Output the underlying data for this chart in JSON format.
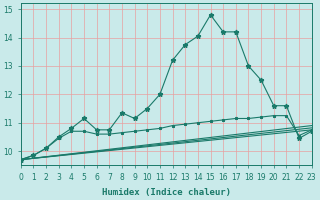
{
  "xlabel": "Humidex (Indice chaleur)",
  "xlim": [
    0,
    23
  ],
  "ylim": [
    9.5,
    15.2
  ],
  "xticks": [
    0,
    1,
    2,
    3,
    4,
    5,
    6,
    7,
    8,
    9,
    10,
    11,
    12,
    13,
    14,
    15,
    16,
    17,
    18,
    19,
    20,
    21,
    22,
    23
  ],
  "yticks": [
    10,
    11,
    12,
    13,
    14,
    15
  ],
  "bg_color": "#c9eaea",
  "grid_color": "#e8a0a0",
  "line_color": "#1a7a6a",
  "line1_x": [
    0,
    1,
    2,
    3,
    4,
    5,
    6,
    7,
    8,
    9,
    10,
    11,
    12,
    13,
    14,
    15,
    16,
    17,
    18,
    19,
    20,
    21,
    22,
    23
  ],
  "line1_y": [
    9.7,
    9.85,
    10.1,
    10.5,
    10.8,
    11.15,
    10.75,
    10.75,
    11.35,
    11.15,
    11.5,
    12.0,
    13.2,
    13.75,
    14.05,
    14.8,
    14.2,
    14.2,
    13.0,
    12.5,
    11.6,
    11.6,
    10.45,
    10.7
  ],
  "line2_x": [
    0,
    1,
    2,
    3,
    4,
    5,
    6,
    7,
    8,
    9,
    10,
    11,
    12,
    13,
    14,
    15,
    16,
    17,
    18,
    19,
    20,
    21,
    22,
    23
  ],
  "line2_y": [
    9.7,
    9.85,
    10.1,
    10.45,
    10.7,
    10.7,
    10.6,
    10.6,
    10.65,
    10.7,
    10.75,
    10.8,
    10.9,
    10.95,
    11.0,
    11.05,
    11.1,
    11.15,
    11.15,
    11.2,
    11.25,
    11.25,
    10.55,
    10.75
  ],
  "line3_x": [
    0,
    23
  ],
  "line3_y": [
    9.7,
    10.75
  ],
  "line4_x": [
    0,
    23
  ],
  "line4_y": [
    9.7,
    10.9
  ],
  "ticklabel_fontsize": 5.5,
  "xlabel_fontsize": 6.5
}
